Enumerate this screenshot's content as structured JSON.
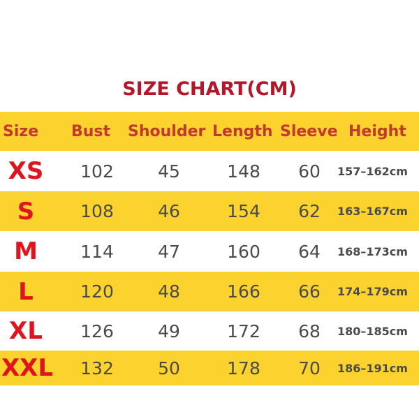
{
  "title": "SIZE CHART(CM)",
  "table": {
    "header": [
      "Size",
      "Bust",
      "Shoulder",
      "Length",
      "Sleeve",
      "Height"
    ],
    "rows": [
      [
        "XS",
        "102",
        "45",
        "148",
        "60",
        "157–162cm"
      ],
      [
        "S",
        "108",
        "46",
        "154",
        "62",
        "163–167cm"
      ],
      [
        "M",
        "114",
        "47",
        "160",
        "64",
        "168–173cm"
      ],
      [
        "L",
        "120",
        "48",
        "166",
        "66",
        "174–179cm"
      ],
      [
        "XL",
        "126",
        "49",
        "172",
        "68",
        "180–185cm"
      ],
      [
        "XXL",
        "132",
        "50",
        "178",
        "70",
        "186–191cm"
      ]
    ]
  }
}
